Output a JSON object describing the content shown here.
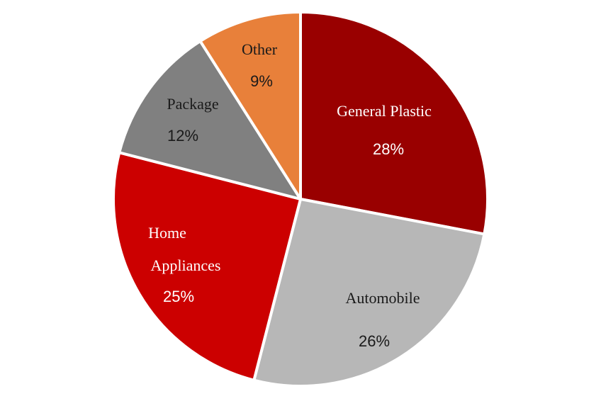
{
  "chart_data": {
    "type": "pie",
    "title": "",
    "start_angle_deg": 0,
    "direction": "clockwise",
    "slices": [
      {
        "label": "General Plastic",
        "value": 28,
        "value_label": "28%",
        "color": "#990000",
        "text_color": "#ffffff"
      },
      {
        "label": "Automobile",
        "value": 26,
        "value_label": "26%",
        "color": "#b7b7b7",
        "text_color": "#1a1a1a"
      },
      {
        "label": "Home Appliances",
        "value": 25,
        "value_label": "25%",
        "color": "#cc0000",
        "text_color": "#ffffff"
      },
      {
        "label": "Package",
        "value": 12,
        "value_label": "12%",
        "color": "#808080",
        "text_color": "#1a1a1a"
      },
      {
        "label": "Other",
        "value": 9,
        "value_label": "9%",
        "color": "#e8803a",
        "text_color": "#1a1a1a"
      }
    ],
    "slice_border_color": "#ffffff",
    "legend": "none"
  }
}
